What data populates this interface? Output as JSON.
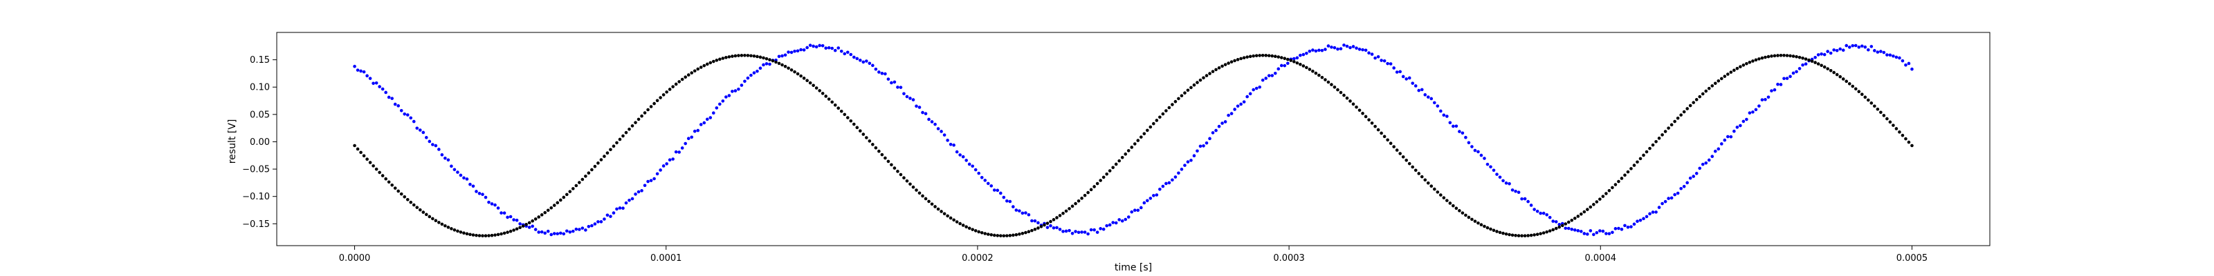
{
  "chart_data": {
    "type": "scatter",
    "title": "",
    "xlabel": "time [s]",
    "ylabel": "result [V]",
    "xlim": [
      -2.5e-05,
      0.000525
    ],
    "ylim": [
      -0.19,
      0.2
    ],
    "grid": false,
    "legend": "none",
    "x_ticks": [
      0.0,
      0.0001,
      0.0002,
      0.0003,
      0.0004,
      0.0005
    ],
    "x_tick_labels": [
      "0.0000",
      "0.0001",
      "0.0002",
      "0.0003",
      "0.0004",
      "0.0005"
    ],
    "y_ticks": [
      -0.15,
      -0.1,
      -0.05,
      0.0,
      0.05,
      0.1,
      0.15
    ],
    "y_tick_labels": [
      "−0.15",
      "−0.10",
      "−0.05",
      "0.00",
      "0.05",
      "0.10",
      "0.15"
    ],
    "series": [
      {
        "color": "#0000ff",
        "marker": "dot",
        "model": {
          "form": "offset - amplitude*sin(2*pi*frequency*t + phase)",
          "amplitude": 0.17,
          "frequency": 6000,
          "phase": -0.9,
          "offset": 0.0035,
          "noise": 0.004
        },
        "points": 500
      },
      {
        "color": "#000000",
        "marker": "dot",
        "model": {
          "form": "offset - amplitude*sin(2*pi*frequency*t)",
          "amplitude": 0.165,
          "frequency": 6000,
          "phase": 0.0,
          "offset": -0.007,
          "noise": 0.0
        },
        "points": 500
      }
    ]
  }
}
